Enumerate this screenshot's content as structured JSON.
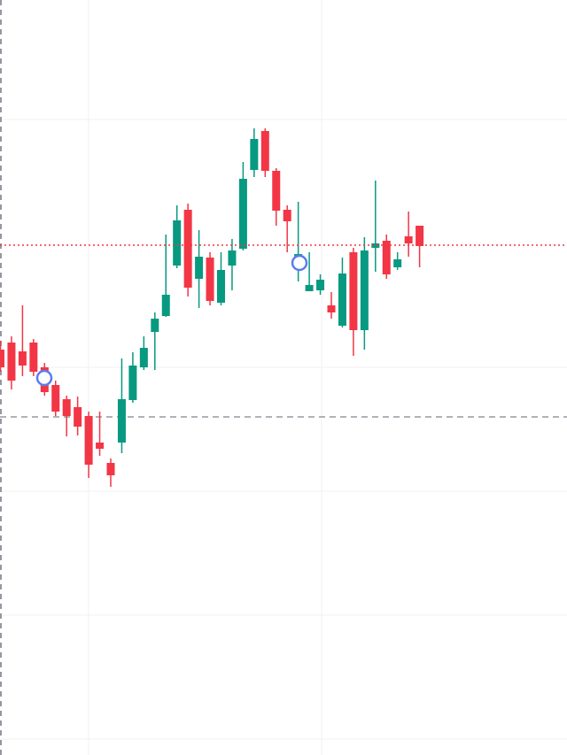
{
  "chart_data": {
    "type": "candlestick",
    "categories": [
      null,
      null,
      null,
      null,
      null,
      null,
      null,
      null,
      null,
      null,
      null,
      null,
      null,
      null,
      null,
      null,
      null,
      null,
      null,
      null,
      null,
      null,
      null,
      null,
      null,
      null,
      null,
      null,
      null,
      null,
      null,
      null,
      null,
      null,
      null,
      null,
      null,
      null,
      null
    ],
    "open": [
      458,
      466,
      456,
      466,
      438,
      418,
      402,
      393,
      383,
      353,
      330,
      353,
      401,
      438,
      478,
      496,
      553,
      616,
      538,
      562,
      511,
      553,
      572,
      661,
      705,
      660,
      616,
      561,
      524,
      525,
      508,
      485,
      568,
      480,
      573,
      581,
      551,
      586,
      598
    ],
    "high": [
      468,
      473,
      508,
      470,
      443,
      423,
      406,
      405,
      388,
      388,
      335,
      448,
      455,
      473,
      500,
      588,
      621,
      623,
      593,
      568,
      568,
      583,
      670,
      708,
      708,
      663,
      621,
      625,
      568,
      543,
      523,
      562,
      573,
      585,
      649,
      588,
      568,
      614,
      598
    ],
    "low": [
      433,
      413,
      428,
      428,
      406,
      383,
      360,
      361,
      313,
      338,
      303,
      341,
      398,
      435,
      435,
      495,
      550,
      518,
      505,
      508,
      508,
      525,
      570,
      653,
      653,
      598,
      568,
      535,
      526,
      520,
      493,
      483,
      451,
      458,
      546,
      538,
      548,
      563,
      551
    ],
    "close": [
      438,
      423,
      440,
      433,
      410,
      388,
      383,
      371,
      328,
      346,
      316,
      402,
      440,
      460,
      493,
      520,
      604,
      528,
      563,
      513,
      548,
      570,
      651,
      696,
      660,
      615,
      603,
      566,
      531,
      537,
      500,
      544,
      480,
      570,
      578,
      543,
      560,
      578,
      575
    ],
    "up_color": "#089981",
    "down_color": "#f23645",
    "price_line": 576,
    "reference_line": 382,
    "ylim": [
      0,
      853
    ]
  }
}
